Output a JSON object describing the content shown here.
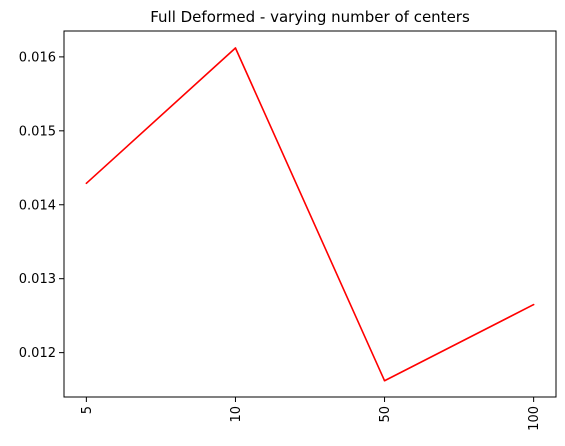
{
  "chart_data": {
    "type": "line",
    "title": "Full Deformed - varying number of centers",
    "xlabel": "",
    "ylabel": "",
    "categories": [
      "5",
      "10",
      "50",
      "100"
    ],
    "series": [
      {
        "values": [
          0.01429,
          0.01612,
          0.01162,
          0.01265
        ],
        "color": "#ff0000"
      }
    ],
    "y_ticks": [
      0.012,
      0.013,
      0.014,
      0.015,
      0.016
    ],
    "y_tick_labels": [
      "0.012",
      "0.013",
      "0.014",
      "0.015",
      "0.016"
    ],
    "ylim": [
      0.0114,
      0.01635
    ],
    "x_tick_rotation": "vertical",
    "grid": false,
    "legend": "none"
  }
}
